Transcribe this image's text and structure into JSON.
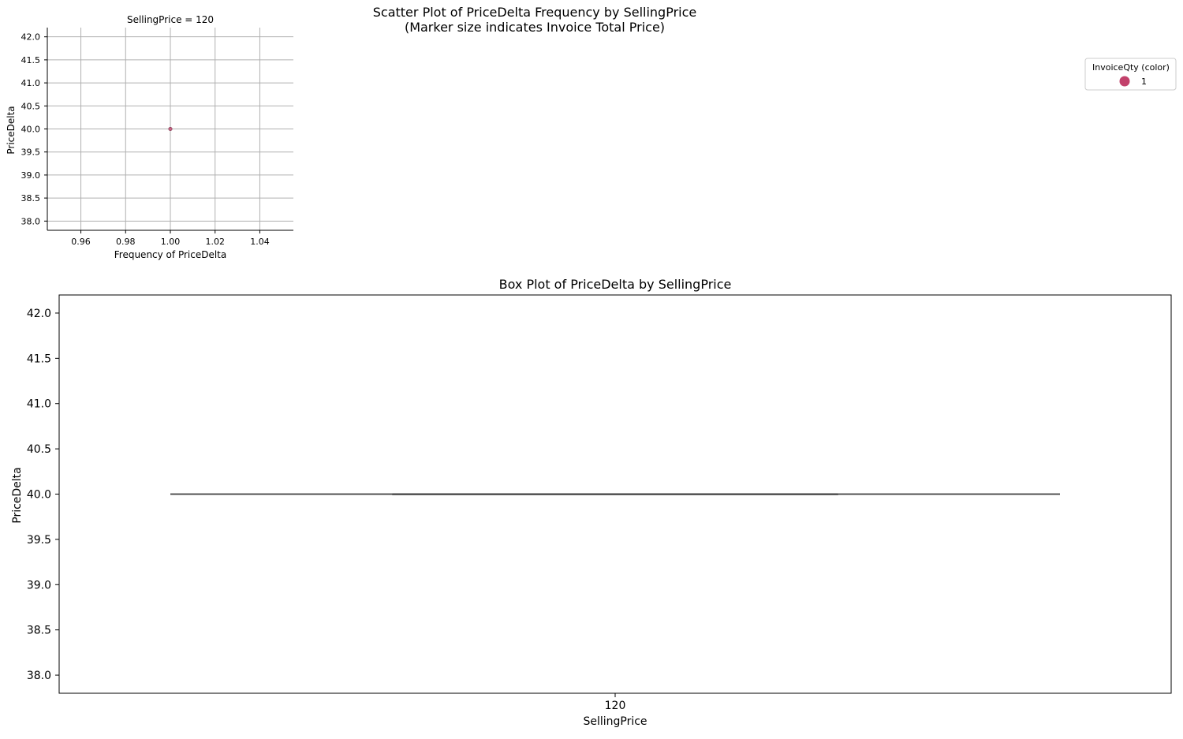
{
  "figure": {
    "title_line1": "Scatter Plot of PriceDelta Frequency by SellingPrice",
    "title_line2": "(Marker size indicates Invoice Total Price)"
  },
  "legend": {
    "title": "InvoiceQty (color)",
    "items": [
      {
        "label": "1",
        "color": "#c2416b"
      }
    ]
  },
  "chart_data": [
    {
      "type": "scatter",
      "title": "SellingPrice = 120",
      "xlabel": "Frequency of PriceDelta",
      "ylabel": "PriceDelta",
      "xlim": [
        0.945,
        1.055
      ],
      "ylim": [
        37.8,
        42.2
      ],
      "xticks": [
        0.96,
        0.98,
        1.0,
        1.02,
        1.04
      ],
      "xtick_labels": [
        "0.96",
        "0.98",
        "1.00",
        "1.02",
        "1.04"
      ],
      "yticks": [
        38.0,
        38.5,
        39.0,
        39.5,
        40.0,
        40.5,
        41.0,
        41.5,
        42.0
      ],
      "ytick_labels": [
        "38.0",
        "38.5",
        "39.0",
        "39.5",
        "40.0",
        "40.5",
        "41.0",
        "41.5",
        "42.0"
      ],
      "grid": true,
      "points": [
        {
          "x": 1.0,
          "y": 40.0,
          "invoice_qty": 1,
          "color": "#c2416b"
        }
      ]
    },
    {
      "type": "box",
      "title": "Box Plot of PriceDelta by SellingPrice",
      "xlabel": "SellingPrice",
      "ylabel": "PriceDelta",
      "categories": [
        "120"
      ],
      "ylim": [
        37.8,
        42.2
      ],
      "yticks": [
        38.0,
        38.5,
        39.0,
        39.5,
        40.0,
        40.5,
        41.0,
        41.5,
        42.0
      ],
      "ytick_labels": [
        "38.0",
        "38.5",
        "39.0",
        "39.5",
        "40.0",
        "40.5",
        "41.0",
        "41.5",
        "42.0"
      ],
      "grid": false,
      "boxes": [
        {
          "category": "120",
          "min": 40.0,
          "q1": 40.0,
          "median": 40.0,
          "q3": 40.0,
          "max": 40.0
        }
      ]
    }
  ]
}
